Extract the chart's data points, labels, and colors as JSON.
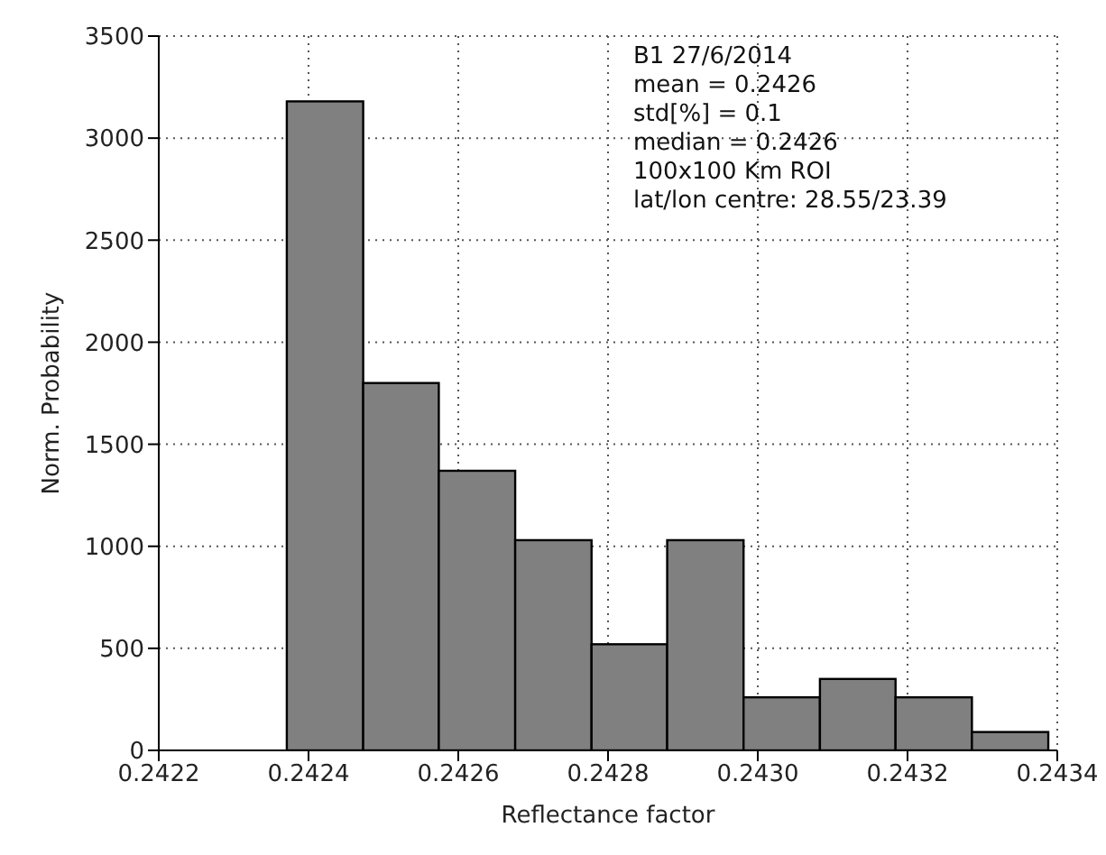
{
  "chart_data": {
    "type": "histogram",
    "xlabel": "Reflectance factor",
    "ylabel": "Norm. Probability",
    "bins": [
      0.242371,
      0.242473,
      0.242574,
      0.242676,
      0.242778,
      0.242879,
      0.242981,
      0.243083,
      0.243184,
      0.243286,
      0.243388
    ],
    "values": [
      3180,
      1800,
      1370,
      1030,
      520,
      1030,
      260,
      350,
      260,
      90
    ],
    "color": "#808080",
    "xlim": [
      0.2422,
      0.2434
    ],
    "xticks": [
      0.2422,
      0.2424,
      0.2426,
      0.2428,
      {
        "value": 0.243,
        "label": "0.2430"
      },
      0.2432,
      0.2434
    ],
    "ylim": [
      0,
      3500
    ],
    "yticks": [
      0,
      500,
      1000,
      1500,
      2000,
      2500,
      3000,
      3500
    ],
    "grid": true,
    "annotations": [
      "B1 27/6/2014",
      "mean = 0.2426",
      "std[%] = 0.1",
      "median = 0.2426",
      "100x100 Km ROI",
      "lat/lon centre: 28.55/23.39"
    ]
  }
}
